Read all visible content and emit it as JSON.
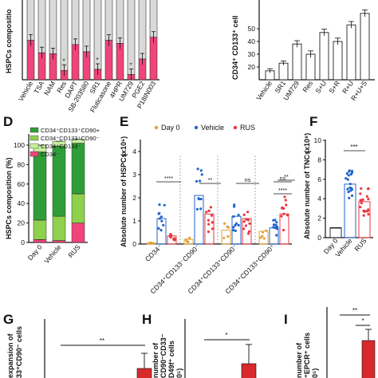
{
  "panels": {
    "D": "D",
    "E": "E",
    "F": "F",
    "G": "G",
    "H": "H",
    "I": "I"
  },
  "colors": {
    "grey": "#d9d9d9",
    "pink": "#f0447a",
    "white_bar": "#ffffff",
    "green_dark": "#2f9e39",
    "green_light": "#8ed14c",
    "lightgreen_pale": "#c7ef9c",
    "orange": "#e0a33a",
    "blue": "#2266cc",
    "red": "#e8383f",
    "dark_red": "#d72a2a"
  },
  "chart_data": [
    {
      "panel": "top-left",
      "type": "bar",
      "stacked": true,
      "ylabel": "HSPCs compositio",
      "categories": [
        "Vehicle",
        "TSA",
        "NAM",
        "Res",
        "DAPT",
        "SB-203580",
        "SR1",
        "Fluticasone",
        "4HPR",
        "UM729",
        "PGE2",
        "P18IN003"
      ],
      "series": [
        {
          "values": [
            38,
            26,
            25,
            9,
            34,
            27,
            10,
            38,
            35,
            5,
            20,
            41
          ]
        },
        {
          "values": [
            62,
            74,
            75,
            91,
            66,
            73,
            90,
            62,
            65,
            95,
            80,
            59
          ]
        }
      ],
      "significance": [
        "",
        "",
        "",
        "*",
        "",
        "",
        "*",
        "",
        "",
        "*",
        "",
        ""
      ]
    },
    {
      "panel": "top-right",
      "type": "bar",
      "ylabel": "CD34⁺ CD133⁺ cell",
      "categories": [
        "Vehicle",
        "SR1",
        "UM729",
        "Res",
        "S+U",
        "S+R",
        "R+U",
        "R+U+S"
      ],
      "values": [
        17,
        23,
        38,
        30,
        47,
        40,
        53,
        62
      ],
      "errors": [
        1,
        1,
        2,
        2,
        2,
        2,
        2,
        2
      ],
      "yticks": [
        "20",
        "30",
        "40",
        "50"
      ]
    },
    {
      "panel": "D",
      "type": "bar",
      "stacked": true,
      "ylabel": "HSPCs composition (%)",
      "yticks": [
        "0",
        "20",
        "40",
        "60",
        "80",
        "100"
      ],
      "ylim": [
        0,
        110
      ],
      "categories": [
        "Day 0",
        "Vehicle",
        "RUS"
      ],
      "legend": [
        "CD34⁺CD133⁺CD90+",
        "CD34⁺CD133⁺CD90⁻",
        "CD34⁺CD133⁻",
        "CD34⁻"
      ],
      "series": [
        {
          "name": "CD34⁻",
          "values": [
            3,
            2,
            20
          ]
        },
        {
          "name": "CD34⁺CD133⁻",
          "values": [
            20,
            25,
            30
          ]
        },
        {
          "name": "CD34⁺CD133⁺CD90⁻",
          "values": [
            70,
            72,
            52
          ]
        },
        {
          "name": "CD34⁺CD133⁺CD90+",
          "values": [
            7,
            5,
            4
          ]
        }
      ]
    },
    {
      "panel": "E",
      "type": "bar",
      "ylabel": "Absolute number of HSPCs",
      "yunit": "(x10⁶)",
      "yticks": [
        "0",
        "1",
        "2",
        "3",
        "4"
      ],
      "ylim": [
        0,
        4.3
      ],
      "legend": [
        "Day 0",
        "Vehicle",
        "RUS"
      ],
      "groups": [
        "CD34⁻",
        "CD34⁺CD133⁻CD90⁻",
        "CD34⁺CD133⁺CD90⁻",
        "CD34⁺CD133⁺CD90⁺"
      ],
      "series": [
        {
          "name": "Day 0",
          "values": [
            0.05,
            0.2,
            0.6,
            0.55
          ]
        },
        {
          "name": "Vehicle",
          "values": [
            1.1,
            2.1,
            1.2,
            0.7
          ]
        },
        {
          "name": "RUS",
          "values": [
            0.35,
            1.3,
            1.1,
            1.3
          ]
        }
      ],
      "significance": [
        "****",
        "**",
        "ns",
        "ns",
        "**",
        "****"
      ]
    },
    {
      "panel": "F",
      "type": "bar",
      "ylabel": "Absolute number of TNCs",
      "yunit": "(x10⁸)",
      "yticks": [
        "0",
        "2",
        "4",
        "6",
        "8",
        "10"
      ],
      "ylim": [
        0,
        10
      ],
      "categories": [
        "Day 0",
        "Vehicle",
        "RUS"
      ],
      "values": [
        1,
        5.5,
        3.7
      ],
      "significance": [
        "***"
      ]
    },
    {
      "panel": "G",
      "type": "bar",
      "ylabel_line1": "expansion of",
      "ylabel_line2": "33⁺CD90⁻ cells",
      "values": [
        1.2
      ],
      "significance": [
        "**"
      ]
    },
    {
      "panel": "H",
      "type": "bar",
      "ylabel_line1": "number of",
      "ylabel_line2": "CD90⁻CD33⁻",
      "ylabel_line3": "D49f⁺ cells",
      "ylabel_line4": "0⁵)",
      "values": [
        1.5
      ],
      "significance": [
        "*"
      ]
    },
    {
      "panel": "I",
      "type": "bar",
      "ylabel_line1": "number of",
      "ylabel_line2": "⁺EPCR⁺ cells",
      "ylabel_line3": "0⁵)",
      "values": [
        1.3
      ],
      "significance": [
        "**",
        "*"
      ]
    }
  ]
}
